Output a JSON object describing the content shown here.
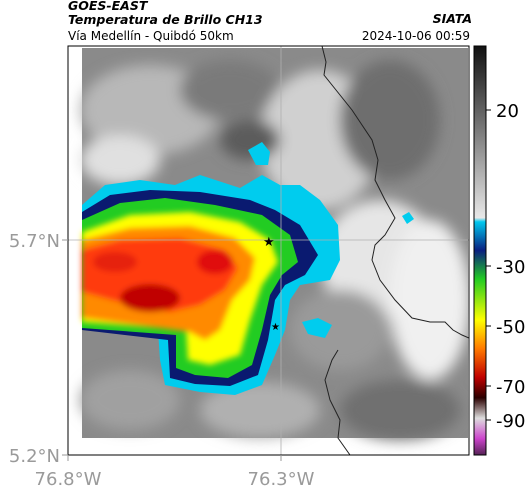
{
  "header": {
    "satellite": "GOES-EAST",
    "product": "Temperatura de Brillo CH13",
    "subtitle": "Vía Medellín - Quibdó 50km",
    "org": "SIATA",
    "timestamp": "2024-10-06 00:59"
  },
  "axes": {
    "y_ticks": [
      "5.7°N",
      "5.2°N"
    ],
    "x_ticks": [
      "76.8°W",
      "76.3°W"
    ]
  },
  "colorbar": {
    "ticks": [
      "20",
      "-30",
      "-50",
      "-70",
      "-90"
    ]
  },
  "marker": {
    "symbol": "★"
  },
  "colors": {
    "very_cold": "#c00000",
    "cold": "#ff6a00",
    "mid": "#ffff00",
    "warm": "#22cc22",
    "edge": "#00ccee",
    "ring": "#0a1a70"
  }
}
